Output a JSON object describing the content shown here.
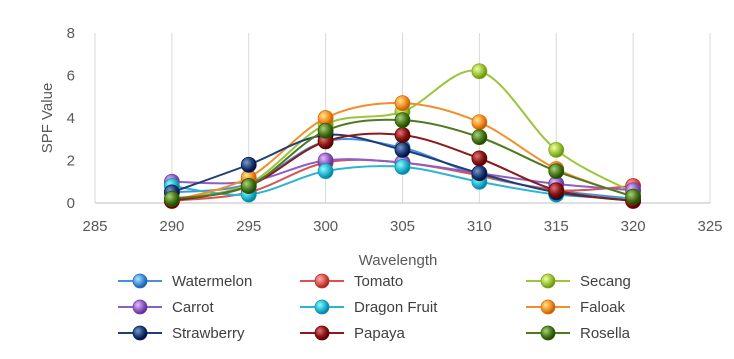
{
  "chart_data": {
    "type": "scatter",
    "xlabel": "Wavelength",
    "ylabel": "SPF Value",
    "xlim": [
      285,
      325
    ],
    "ylim": [
      0,
      8
    ],
    "xticks": [
      285,
      290,
      295,
      300,
      305,
      310,
      315,
      320,
      325
    ],
    "yticks": [
      0,
      2,
      4,
      6,
      8
    ],
    "grid": "vertical",
    "legend_position": "bottom",
    "smooth_lines": true,
    "x": [
      290,
      295,
      300,
      305,
      310,
      315,
      320
    ],
    "series": [
      {
        "name": "Watermelon",
        "color": "#4a90d9",
        "values": [
          0.5,
          0.9,
          2.9,
          2.6,
          1.3,
          0.6,
          0.2
        ]
      },
      {
        "name": "Tomato",
        "color": "#d9534f",
        "values": [
          0.1,
          0.5,
          1.9,
          1.9,
          1.3,
          0.6,
          0.8
        ]
      },
      {
        "name": "Secang",
        "color": "#9bc53d",
        "values": [
          0.2,
          0.9,
          3.7,
          4.3,
          6.2,
          2.5,
          0.5
        ]
      },
      {
        "name": "Carrot",
        "color": "#8e5fc2",
        "values": [
          1.0,
          1.0,
          2.0,
          1.9,
          1.4,
          0.9,
          0.6
        ]
      },
      {
        "name": "Dragon Fruit",
        "color": "#2bb5d1",
        "values": [
          0.8,
          0.4,
          1.5,
          1.7,
          1.0,
          0.4,
          0.2
        ]
      },
      {
        "name": "Faloak",
        "color": "#f28e2b",
        "values": [
          0.1,
          1.2,
          4.0,
          4.7,
          3.8,
          1.6,
          0.3
        ]
      },
      {
        "name": "Strawberry",
        "color": "#1f3e73",
        "values": [
          0.5,
          1.8,
          3.2,
          2.5,
          1.4,
          0.5,
          0.1
        ]
      },
      {
        "name": "Papaya",
        "color": "#8b1a1a",
        "values": [
          0.1,
          0.8,
          2.9,
          3.2,
          2.1,
          0.6,
          0.1
        ]
      },
      {
        "name": "Rosella",
        "color": "#4d7a1f",
        "values": [
          0.2,
          0.8,
          3.4,
          3.9,
          3.1,
          1.5,
          0.3
        ]
      }
    ]
  }
}
